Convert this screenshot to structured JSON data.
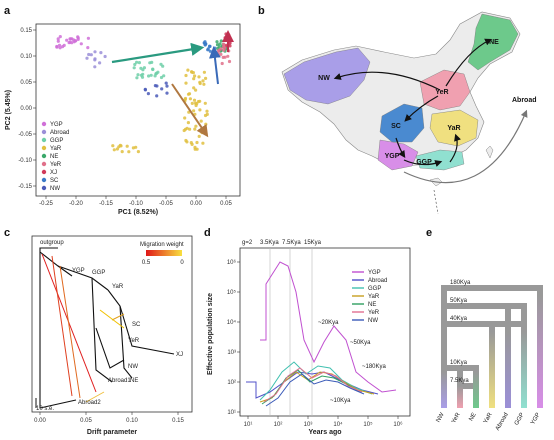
{
  "panels": {
    "a": "a",
    "b": "b",
    "c": "c",
    "d": "d",
    "e": "e"
  },
  "pca": {
    "xlabel": "PC1 (8.52%)",
    "ylabel": "PC2 (5.45%)",
    "xticks": [
      "-0.25",
      "-0.20",
      "-0.15",
      "-0.10",
      "-0.05",
      "0.00",
      "0.05"
    ],
    "yticks": [
      "0.15",
      "0.10",
      "0.05",
      "0.00",
      "-0.05",
      "-0.10",
      "-0.15"
    ],
    "legend": [
      {
        "name": "YGP",
        "color": "#d070d8"
      },
      {
        "name": "Abroad",
        "color": "#9b8fd8"
      },
      {
        "name": "GGP",
        "color": "#6ecfa8"
      },
      {
        "name": "YaR",
        "color": "#e0c040"
      },
      {
        "name": "NE",
        "color": "#3aa86a"
      },
      {
        "name": "YeR",
        "color": "#e0708a"
      },
      {
        "name": "XJ",
        "color": "#d03a5a"
      },
      {
        "name": "SC",
        "color": "#3a7ac8"
      },
      {
        "name": "NW",
        "color": "#4a5ab8"
      }
    ]
  },
  "map": {
    "regions": [
      {
        "name": "NW",
        "color": "#a99ee8"
      },
      {
        "name": "NE",
        "color": "#6dc98b"
      },
      {
        "name": "YeR",
        "color": "#f0a0b0"
      },
      {
        "name": "SC",
        "color": "#4a8ad0"
      },
      {
        "name": "YaR",
        "color": "#f0e080"
      },
      {
        "name": "YGP",
        "color": "#d88ee8"
      },
      {
        "name": "GGP",
        "color": "#90e0d0"
      }
    ],
    "abroad_label": "Abroad"
  },
  "treemix": {
    "xlabel": "Drift parameter",
    "xticks": [
      "0.00",
      "0.05",
      "0.10",
      "0.15"
    ],
    "legend_title": "Migration weight",
    "legend_ticks": [
      "0.5",
      "0"
    ],
    "scale_label": "10 s.e.",
    "nodes": [
      "outgroup",
      "YGP",
      "GGP",
      "YaR",
      "SC",
      "YeR",
      "XJ",
      "NW",
      "NE",
      "Abroad1",
      "Abroad2"
    ]
  },
  "psmc": {
    "ylabel": "Effective population size",
    "xlabel": "Years ago",
    "gen_label": "g=2",
    "top_marks": [
      "3.5Kya",
      "7.5Kya",
      "15Kya"
    ],
    "annotations": [
      "~20Kya",
      "~50Kya",
      "~180Kya",
      "~10Kya"
    ],
    "yticks": [
      "10⁶",
      "10⁵",
      "10⁴",
      "10³",
      "10²",
      "10¹"
    ],
    "xticks": [
      "10¹",
      "10²",
      "10³",
      "10⁴",
      "10⁵",
      "10⁶"
    ],
    "series": [
      {
        "name": "YGP",
        "color": "#c050d0"
      },
      {
        "name": "Abroad",
        "color": "#5050c8"
      },
      {
        "name": "GGP",
        "color": "#40c0b0"
      },
      {
        "name": "YaR",
        "color": "#c8a020"
      },
      {
        "name": "NE",
        "color": "#30a060"
      },
      {
        "name": "YeR",
        "color": "#e07090"
      },
      {
        "name": "NW",
        "color": "#3a5ab8"
      }
    ]
  },
  "tree": {
    "times": [
      "180Kya",
      "50Kya",
      "40Kya",
      "10Kya",
      "7.5Kya"
    ],
    "leaves": [
      "NW",
      "YeR",
      "NE",
      "YaR",
      "Abroad",
      "GGP",
      "YGP"
    ]
  }
}
